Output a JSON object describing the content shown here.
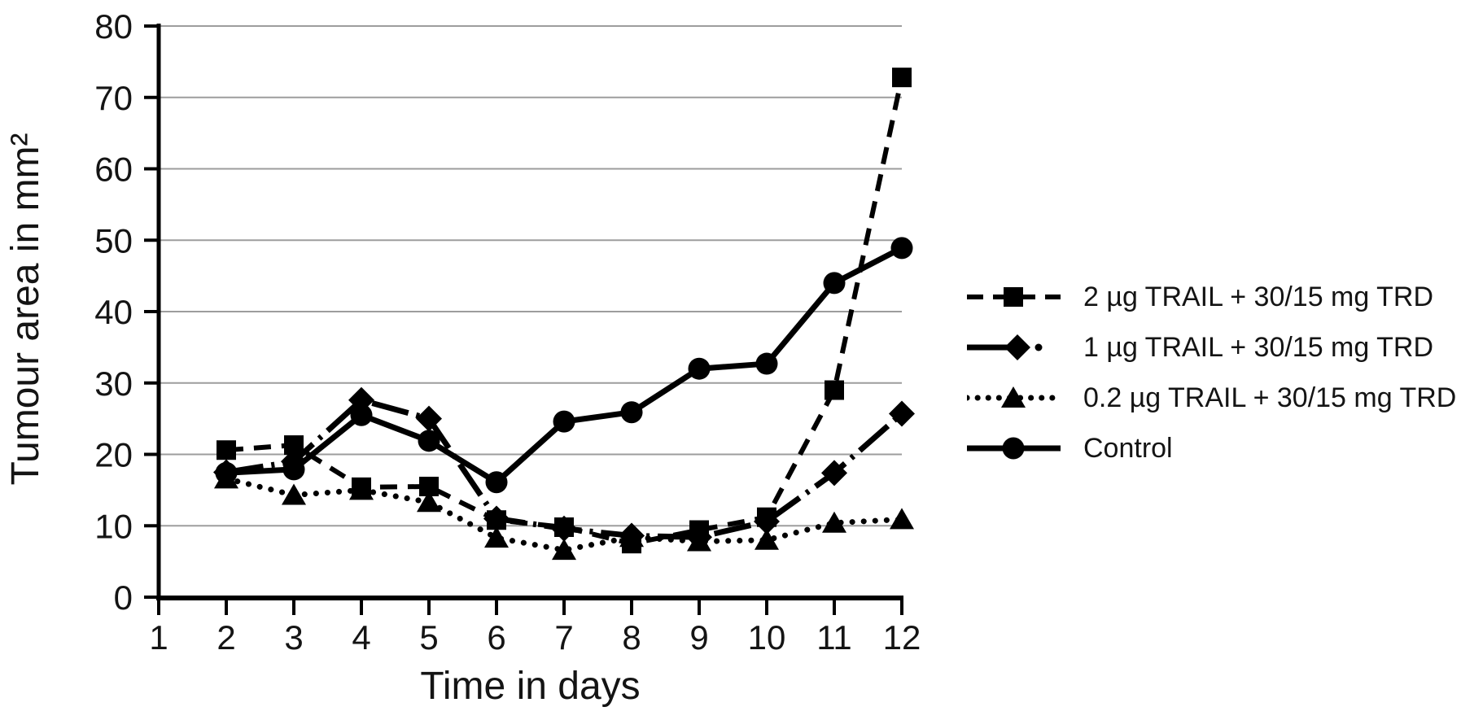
{
  "chart_data": {
    "type": "line",
    "title": "",
    "xlabel": "Time in days",
    "ylabel": "Tumour area in mm²",
    "x": [
      2,
      3,
      4,
      5,
      6,
      7,
      8,
      9,
      10,
      11,
      12
    ],
    "x_ticks": [
      1,
      2,
      3,
      4,
      5,
      6,
      7,
      8,
      9,
      10,
      11,
      12
    ],
    "y_ticks": [
      0,
      10,
      20,
      30,
      40,
      50,
      60,
      70,
      80
    ],
    "xlim": [
      1,
      12
    ],
    "ylim": [
      0,
      80
    ],
    "grid": "horizontal",
    "legend_position": "right",
    "series": [
      {
        "key": "2ug-trail-trd",
        "name": "2 µg TRAIL + 30/15 mg TRD",
        "marker": "square",
        "line": "dashed",
        "values": [
          20.6,
          21.3,
          15.4,
          15.5,
          10.8,
          9.8,
          7.5,
          9.4,
          11.2,
          29.0,
          72.8
        ]
      },
      {
        "key": "1ug-trail-trd",
        "name": "1 µg TRAIL + 30/15 mg TRD",
        "marker": "diamond",
        "line": "dashdot",
        "values": [
          17.5,
          19.0,
          27.6,
          25.0,
          11.0,
          9.6,
          8.6,
          8.4,
          10.6,
          17.4,
          25.7
        ]
      },
      {
        "key": "02ug-trail-trd",
        "name": "0.2 µg TRAIL + 30/15 mg TRD",
        "marker": "triangle",
        "line": "dotted",
        "values": [
          16.6,
          14.3,
          15.0,
          13.3,
          8.3,
          6.6,
          8.4,
          7.8,
          8.0,
          10.4,
          10.9
        ]
      },
      {
        "key": "control",
        "name": "Control",
        "marker": "circle",
        "line": "solid",
        "values": [
          17.4,
          17.9,
          25.5,
          21.9,
          16.1,
          24.6,
          25.9,
          32.0,
          32.7,
          44.0,
          48.9
        ]
      }
    ],
    "colors": {
      "series": "#000000",
      "grid": "#9d9d9d",
      "axis": "#000000",
      "text": "#141414"
    }
  }
}
